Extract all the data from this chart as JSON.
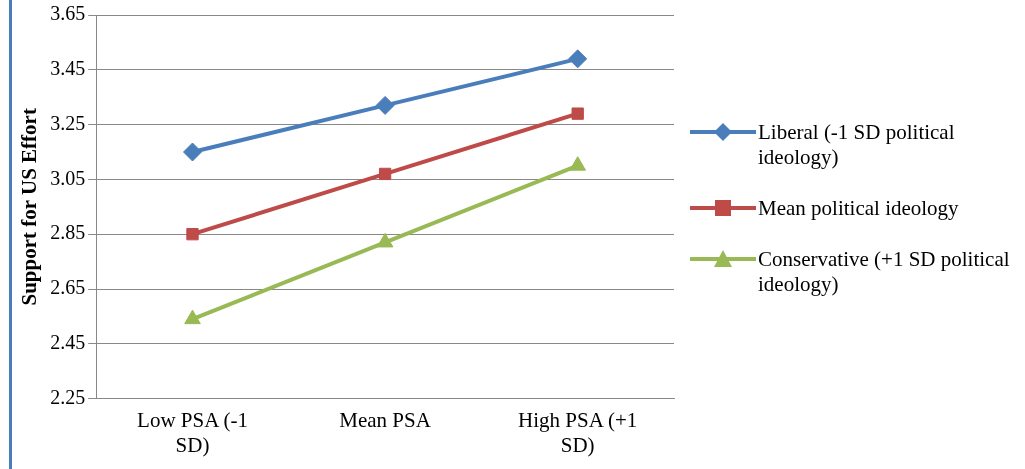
{
  "chart_data": {
    "type": "line",
    "ylabel": "Support for US Effort",
    "categories": [
      "Low PSA (-1 SD)",
      "Mean PSA",
      "High PSA (+1 SD)"
    ],
    "series": [
      {
        "name": "Liberal (-1 SD political ideology)",
        "color": "#4a7ebb",
        "marker": "diamond",
        "values": [
          3.15,
          3.32,
          3.49
        ]
      },
      {
        "name": "Mean political ideology",
        "color": "#be4b48",
        "marker": "square",
        "values": [
          2.85,
          3.07,
          3.29
        ]
      },
      {
        "name": "Conservative (+1 SD political ideology)",
        "color": "#98b954",
        "marker": "triangle",
        "values": [
          2.54,
          2.82,
          3.1
        ]
      }
    ],
    "ylim": [
      2.25,
      3.65
    ],
    "yticks": [
      {
        "value": 2.25,
        "label": "2.25"
      },
      {
        "value": 2.45,
        "label": "2.45"
      },
      {
        "value": 2.65,
        "label": "2.65"
      },
      {
        "value": 2.85,
        "label": "2.85"
      },
      {
        "value": 3.05,
        "label": "3.05"
      },
      {
        "value": 3.25,
        "label": "3.25"
      },
      {
        "value": 3.45,
        "label": "3.45"
      },
      {
        "value": 3.65,
        "label": "3.65"
      }
    ],
    "grid": "y",
    "legend": "right",
    "line_style": "solid"
  }
}
